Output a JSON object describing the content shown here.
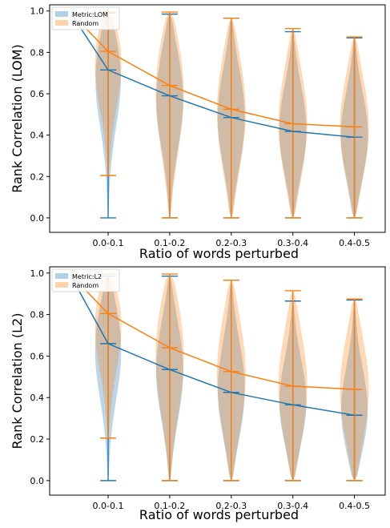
{
  "colors": {
    "metric": "#1f77b4",
    "random": "#ff7f0e",
    "metric_fill": "#1f77b4",
    "random_fill": "#ff7f0e"
  },
  "chart_data": [
    {
      "type": "violin",
      "xlabel": "Ratio of words perturbed",
      "ylabel": "Rank Correlation (LOM)",
      "categories": [
        "0.0-0.1",
        "0.1-0.2",
        "0.2-0.3",
        "0.3-0.4",
        "0.4-0.5"
      ],
      "yticks": [
        "0.0",
        "0.2",
        "0.4",
        "0.6",
        "0.8",
        "1.0"
      ],
      "ylim": [
        -0.07,
        1.03
      ],
      "grid": false,
      "legend_position": "top-left",
      "series": [
        {
          "name": "Metric:LOM",
          "line_start": 0.98,
          "means": [
            0.715,
            0.59,
            0.485,
            0.418,
            0.39
          ],
          "mins": [
            0.0,
            0.0,
            0.0,
            0.0,
            0.0
          ],
          "maxs": [
            0.99,
            0.985,
            0.965,
            0.9,
            0.87
          ]
        },
        {
          "name": "Random",
          "line_start": 0.985,
          "means": [
            0.805,
            0.64,
            0.525,
            0.455,
            0.44
          ],
          "mins": [
            0.205,
            0.0,
            0.0,
            0.0,
            0.0
          ],
          "maxs": [
            0.995,
            0.995,
            0.965,
            0.915,
            0.875
          ]
        }
      ]
    },
    {
      "type": "violin",
      "xlabel": "Ratio of words perturbed",
      "ylabel": "Rank Correlation (L2)",
      "categories": [
        "0.0-0.1",
        "0.1-0.2",
        "0.2-0.3",
        "0.3-0.4",
        "0.4-0.5"
      ],
      "yticks": [
        "0.0",
        "0.2",
        "0.4",
        "0.6",
        "0.8",
        "1.0"
      ],
      "ylim": [
        -0.07,
        1.03
      ],
      "grid": false,
      "legend_position": "top-left",
      "series": [
        {
          "name": "Metric:L2",
          "line_start": 0.975,
          "means": [
            0.66,
            0.535,
            0.425,
            0.365,
            0.315
          ],
          "mins": [
            0.0,
            0.0,
            0.0,
            0.0,
            0.0
          ],
          "maxs": [
            0.985,
            0.985,
            0.965,
            0.865,
            0.87
          ]
        },
        {
          "name": "Random",
          "line_start": 0.985,
          "means": [
            0.805,
            0.64,
            0.525,
            0.455,
            0.44
          ],
          "mins": [
            0.205,
            0.0,
            0.0,
            0.0,
            0.0
          ],
          "maxs": [
            0.995,
            0.995,
            0.965,
            0.915,
            0.875
          ]
        }
      ]
    }
  ]
}
